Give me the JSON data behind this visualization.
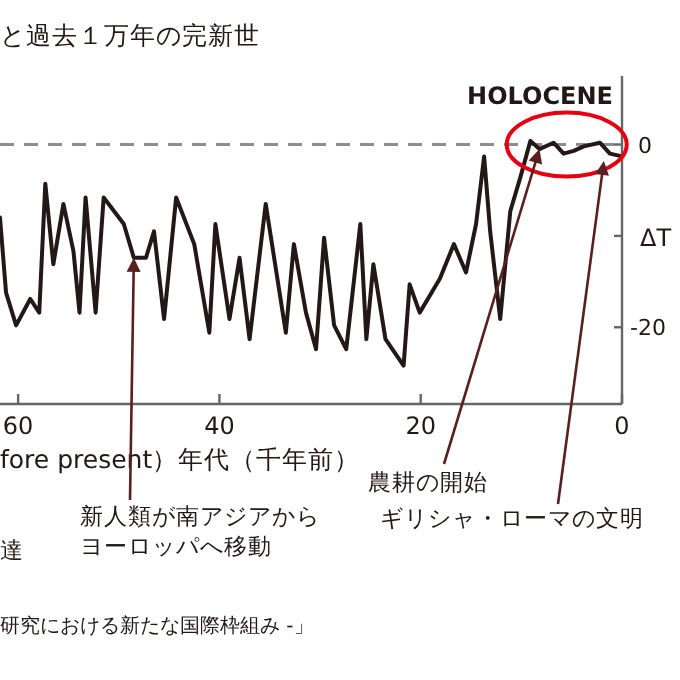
{
  "chart_data": {
    "type": "line",
    "title": "と過去１万年の完新世",
    "xlabel": "fore present）年代（千年前）",
    "ylabel": "ΔT",
    "xlim": [
      61.8,
      0
    ],
    "ylim": [
      -28.4,
      7.5
    ],
    "xticks": [
      60,
      40,
      20,
      0
    ],
    "yticks": [
      0,
      {
        "value": -10,
        "label": null
      },
      -20
    ],
    "ref_lines": [
      {
        "axis": "y",
        "value": 0,
        "label": null,
        "color": "#8c8c8c",
        "line_style": "dashed"
      }
    ],
    "series": [
      {
        "color": "#231815",
        "x": [
          61.8,
          61.2,
          60.2,
          58.8,
          57.9,
          57.3,
          56.5,
          55.5,
          54.5,
          53.9,
          53.3,
          52.3,
          51.5,
          49.5,
          48.5,
          47.3,
          46.5,
          45.5,
          44.3,
          42.5,
          41,
          40.4,
          39,
          38,
          37,
          35.4,
          33.4,
          32.6,
          31.4,
          30.4,
          29.6,
          28.6,
          27.4,
          26,
          25.4,
          24.7,
          23.5,
          21.7,
          21.1,
          20.1,
          18.1,
          16.7,
          15.5,
          14.5,
          13.7,
          13.1,
          12.1,
          11.1,
          10.1,
          9.1,
          8.2,
          6.8,
          5.8,
          4.8,
          3.8,
          2.2,
          1.2,
          0
        ],
        "values": [
          -8,
          -16.2,
          -19.8,
          -16.9,
          -18.4,
          -4.3,
          -13.1,
          -6.5,
          -11.7,
          -18.4,
          -5.8,
          -18.4,
          -5.8,
          -8.7,
          -12.4,
          -12.4,
          -9.5,
          -19.1,
          -5.8,
          -10.9,
          -20.6,
          -8.7,
          -19.1,
          -12.4,
          -21.3,
          -6.5,
          -20.6,
          -10.9,
          -18.4,
          -22.4,
          -10.2,
          -19.8,
          -22.4,
          -8.7,
          -21.3,
          -13.1,
          -21.3,
          -24.2,
          -15.3,
          -18.4,
          -14.7,
          -10.9,
          -14,
          -8.7,
          -1.3,
          -9.5,
          -19.1,
          -7.3,
          -3.6,
          0.4,
          -0.5,
          0.2,
          -1,
          -0.7,
          -0.2,
          0.2,
          -1,
          -1.3
        ]
      }
    ],
    "annotations": [
      {
        "text": "HOLOCENE",
        "x": 4.5,
        "y": 0
      },
      {
        "text": "新人類が南アジアからヨーロッパへ移動",
        "x": 48.5,
        "y": -12.4
      },
      {
        "text": "農耕の開始",
        "x": 8.2,
        "y": -0.5
      },
      {
        "text": "ギリシャ・ローマの文明",
        "x": 1.8,
        "y": -1.8
      },
      "達",
      "研究における新たな国際枠組み -」"
    ]
  }
}
